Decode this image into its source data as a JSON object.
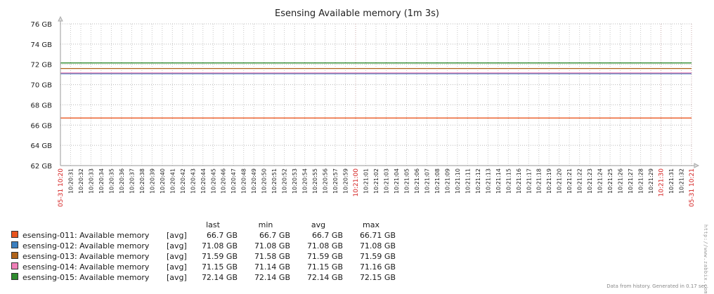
{
  "chart_data": {
    "type": "line",
    "title": "Esensing Available memory (1m 3s)",
    "ylim": [
      62,
      76
    ],
    "y_ticks": [
      "62 GB",
      "64 GB",
      "66 GB",
      "68 GB",
      "70 GB",
      "72 GB",
      "74 GB",
      "76 GB"
    ],
    "x_tick_labels": [
      "05-31 10:20",
      "10:20:31",
      "10:20:32",
      "10:20:33",
      "10:20:34",
      "10:20:35",
      "10:20:36",
      "10:20:37",
      "10:20:38",
      "10:20:39",
      "10:20:40",
      "10:20:41",
      "10:20:42",
      "10:20:43",
      "10:20:44",
      "10:20:45",
      "10:20:46",
      "10:20:47",
      "10:20:48",
      "10:20:49",
      "10:20:50",
      "10:20:51",
      "10:20:52",
      "10:20:53",
      "10:20:54",
      "10:20:55",
      "10:20:56",
      "10:20:57",
      "10:20:59",
      "10:21:00",
      "10:21:01",
      "10:21:02",
      "10:21:03",
      "10:21:04",
      "10:21:05",
      "10:21:06",
      "10:21:07",
      "10:21:08",
      "10:21:09",
      "10:21:10",
      "10:21:11",
      "10:21:12",
      "10:21:13",
      "10:21:14",
      "10:21:15",
      "10:21:16",
      "10:21:17",
      "10:21:18",
      "10:21:19",
      "10:21:20",
      "10:21:21",
      "10:21:22",
      "10:21:23",
      "10:21:24",
      "10:21:25",
      "10:21:26",
      "10:21:27",
      "10:21:28",
      "10:21:29",
      "10:21:30",
      "10:21:31",
      "10:21:32",
      "05-31 10:21"
    ],
    "x_tick_highlight": [
      "05-31 10:20",
      "10:21:00",
      "10:21:30",
      "05-31 10:21"
    ],
    "grid": true,
    "series": [
      {
        "name": "esensing-011: Available memory",
        "color": "#e8541e",
        "values": [
          66.7,
          66.7
        ]
      },
      {
        "name": "esensing-012: Available memory",
        "color": "#2f6fb5",
        "values": [
          71.08,
          71.08
        ]
      },
      {
        "name": "esensing-013: Available memory",
        "color": "#b0631a",
        "values": [
          71.59,
          71.59
        ]
      },
      {
        "name": "esensing-014: Available memory",
        "color": "#e879b0",
        "values": [
          71.15,
          71.15
        ]
      },
      {
        "name": "esensing-015: Available memory",
        "color": "#2e8b2e",
        "values": [
          72.14,
          72.14
        ]
      }
    ]
  },
  "legend": {
    "headers": {
      "last": "last",
      "min": "min",
      "avg": "avg",
      "max": "max"
    },
    "rows": [
      {
        "name": "esensing-011: Available memory",
        "fn": "[avg]",
        "last": "66.7 GB",
        "min": "66.7 GB",
        "avg": "66.7 GB",
        "max": "66.71 GB",
        "color": "#e8541e"
      },
      {
        "name": "esensing-012: Available memory",
        "fn": "[avg]",
        "last": "71.08 GB",
        "min": "71.08 GB",
        "avg": "71.08 GB",
        "max": "71.08 GB",
        "color": "#3b7fbf"
      },
      {
        "name": "esensing-013: Available memory",
        "fn": "[avg]",
        "last": "71.59 GB",
        "min": "71.58 GB",
        "avg": "71.59 GB",
        "max": "71.59 GB",
        "color": "#b0631a"
      },
      {
        "name": "esensing-014: Available memory",
        "fn": "[avg]",
        "last": "71.15 GB",
        "min": "71.14 GB",
        "avg": "71.15 GB",
        "max": "71.16 GB",
        "color": "#f080b8"
      },
      {
        "name": "esensing-015: Available memory",
        "fn": "[avg]",
        "last": "72.14 GB",
        "min": "72.14 GB",
        "avg": "72.14 GB",
        "max": "72.15 GB",
        "color": "#2e8b2e"
      }
    ]
  },
  "watermark": "http://www.zabbix.com",
  "footnote": "Data from history. Generated in 0.17 sec."
}
